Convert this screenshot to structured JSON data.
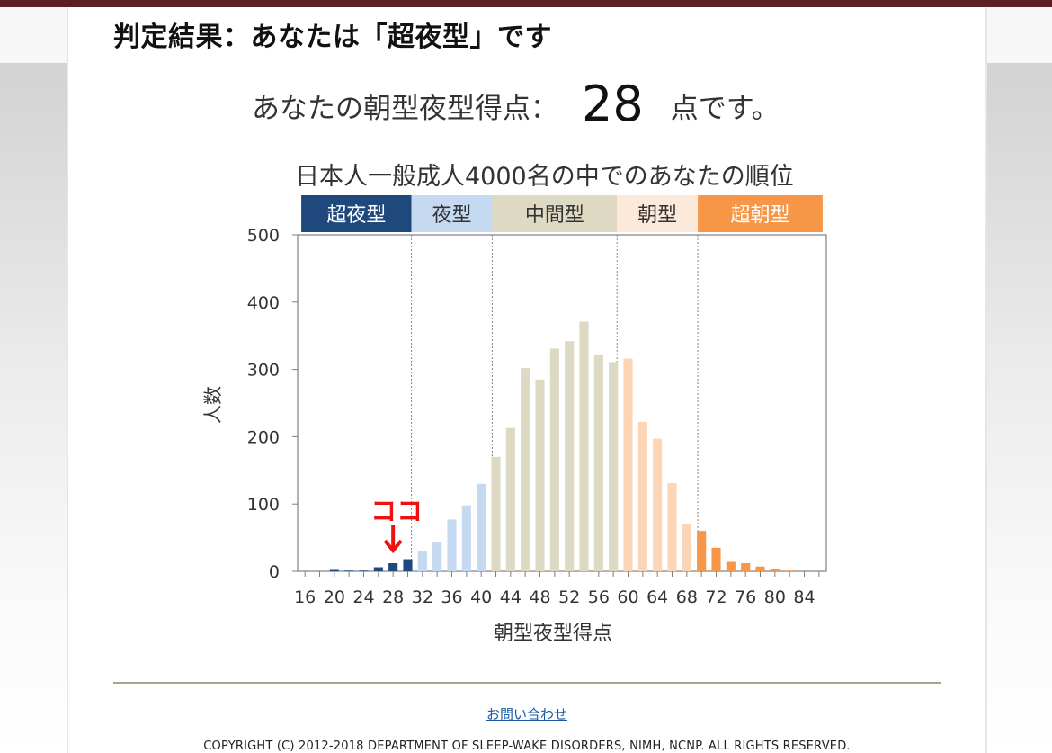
{
  "result": {
    "title": "判定結果：あなたは「超夜型」です"
  },
  "score": {
    "prefix": "あなたの朝型夜型得点：",
    "value": "28",
    "suffix": "点です。"
  },
  "footer": {
    "contact_label": "お問い合わせ",
    "copyright": "COPYRIGHT (C) 2012-2018 DEPARTMENT OF SLEEP-WAKE DISORDERS, NIMH, NCNP. ALL RIGHTS RESERVED."
  },
  "chart_data": {
    "type": "bar",
    "title": "日本人一般成人4000名の中でのあなたの順位",
    "xlabel": "朝型夜型得点",
    "ylabel": "人数",
    "ylim": [
      0,
      500
    ],
    "yticks": [
      0,
      100,
      200,
      300,
      400,
      500
    ],
    "x_tick_labels": [
      "16",
      "20",
      "24",
      "28",
      "32",
      "36",
      "40",
      "44",
      "48",
      "52",
      "56",
      "60",
      "64",
      "68",
      "72",
      "76",
      "80",
      "84"
    ],
    "marker": {
      "label": "ココ",
      "score": 28,
      "color": "#ee1111"
    },
    "categories": [
      {
        "name": "超夜型",
        "range": [
          16,
          30
        ],
        "color": "#1f497d",
        "bar_color": "#1f497d",
        "text_color": "#ffffff"
      },
      {
        "name": "夜型",
        "range": [
          31,
          41
        ],
        "color": "#c5d9f1",
        "bar_color": "#c5d9f1",
        "text_color": "#333333"
      },
      {
        "name": "中間型",
        "range": [
          42,
          58
        ],
        "color": "#ddd9c3",
        "bar_color": "#ddd9c3",
        "text_color": "#333333"
      },
      {
        "name": "朝型",
        "range": [
          59,
          69
        ],
        "color": "#fde9d9",
        "bar_color": "#fbd5b5",
        "text_color": "#333333"
      },
      {
        "name": "超朝型",
        "range": [
          70,
          86
        ],
        "color": "#f79646",
        "bar_color": "#f79646",
        "text_color": "#ffffff"
      }
    ],
    "x": [
      16,
      18,
      20,
      22,
      24,
      26,
      28,
      30,
      32,
      34,
      36,
      38,
      40,
      42,
      44,
      46,
      48,
      50,
      52,
      54,
      56,
      58,
      60,
      62,
      64,
      66,
      68,
      70,
      72,
      74,
      76,
      78,
      80,
      82,
      84,
      86
    ],
    "values": [
      0,
      0,
      2,
      1,
      1,
      6,
      12,
      18,
      30,
      43,
      77,
      98,
      130,
      170,
      213,
      302,
      285,
      331,
      342,
      371,
      321,
      311,
      316,
      222,
      197,
      131,
      70,
      60,
      35,
      14,
      12,
      7,
      3,
      1,
      0,
      0
    ]
  }
}
